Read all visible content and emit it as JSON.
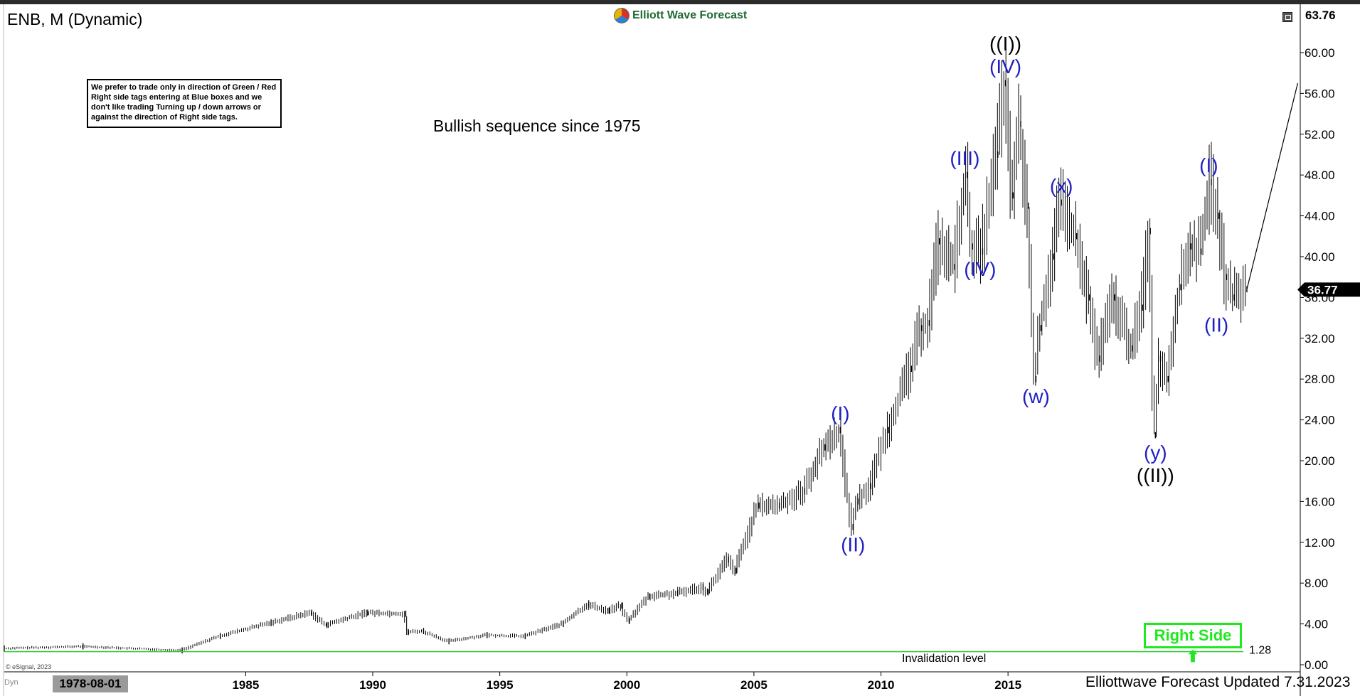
{
  "header": {
    "symbol_label": "ENB, M (Dynamic)",
    "brand": "Elliott Wave Forecast"
  },
  "note_box": {
    "text": "We prefer to trade only in direction of Green / Red Right side tags entering at Blue boxes and we don't like trading Turning up / down arrows or against the direction of Right side tags."
  },
  "subtitle": "Bullish sequence since 1975",
  "right_side_tag": "Right Side",
  "invalidation": {
    "label": "Invalidation level",
    "value_label": "1.28",
    "value": 1.28
  },
  "price_axis": {
    "top_value": "63.76",
    "current_price": "36.77",
    "ticks": [
      "60.00",
      "56.00",
      "52.00",
      "48.00",
      "44.00",
      "40.00",
      "36.00",
      "32.00",
      "28.00",
      "24.00",
      "20.00",
      "16.00",
      "12.00",
      "8.00",
      "4.00",
      "0.00"
    ]
  },
  "time_axis": {
    "cursor_date": "1978-08-01",
    "ticks": [
      "1985",
      "1990",
      "1995",
      "2000",
      "2005",
      "2010",
      "2015"
    ]
  },
  "footer": {
    "copyright": "© eSignal, 2023",
    "dyn": "Dyn",
    "updated": "Elliottwave Forecast Updated 7.31.2023"
  },
  "colors": {
    "wave_blue": "#1f1fc4",
    "wave_black": "#000000",
    "right_side_green": "#1ee81e",
    "invalidation_line": "#2ccf2c",
    "bars": "#000000"
  },
  "chart_data": {
    "type": "ohlc",
    "title": "ENB, M (Dynamic)",
    "timeframe": "Monthly",
    "ylim": [
      0,
      63.76
    ],
    "xlim": [
      1975.5,
      2026.5
    ],
    "x_tick_values": [
      1985,
      1990,
      1995,
      2000,
      2005,
      2010,
      2015
    ],
    "y_tick_values": [
      0,
      4,
      8,
      12,
      16,
      20,
      24,
      28,
      32,
      36,
      40,
      44,
      48,
      52,
      56,
      60
    ],
    "last_price": 36.77,
    "invalidation_level": 1.28,
    "price_path": [
      [
        1975.5,
        1.6
      ],
      [
        1978.6,
        1.8
      ],
      [
        1982.5,
        1.4
      ],
      [
        1984.0,
        2.8
      ],
      [
        1986.0,
        4.1
      ],
      [
        1987.6,
        5.1
      ],
      [
        1988.2,
        3.9
      ],
      [
        1989.8,
        5.1
      ],
      [
        1991.3,
        5.0
      ],
      [
        1991.4,
        3.2
      ],
      [
        1992.0,
        3.3
      ],
      [
        1993.0,
        2.3
      ],
      [
        1994.5,
        2.9
      ],
      [
        1996.0,
        2.8
      ],
      [
        1997.5,
        4.0
      ],
      [
        1998.5,
        5.9
      ],
      [
        1999.3,
        5.3
      ],
      [
        1999.8,
        5.8
      ],
      [
        2000.1,
        4.3
      ],
      [
        2000.9,
        6.7
      ],
      [
        2002.0,
        7.0
      ],
      [
        2003.0,
        7.6
      ],
      [
        2003.2,
        7.1
      ],
      [
        2004.0,
        10.3
      ],
      [
        2004.3,
        9.2
      ],
      [
        2005.2,
        15.6
      ],
      [
        2006.0,
        15.6
      ],
      [
        2007.0,
        17.0
      ],
      [
        2007.8,
        21.3
      ],
      [
        2008.4,
        23.0
      ],
      [
        2008.9,
        13.5
      ],
      [
        2009.1,
        16.0
      ],
      [
        2009.6,
        17.5
      ],
      [
        2010.3,
        23.0
      ],
      [
        2011.2,
        29.0
      ],
      [
        2011.6,
        33.0
      ],
      [
        2011.9,
        33.5
      ],
      [
        2012.3,
        41.5
      ],
      [
        2012.9,
        39.0
      ],
      [
        2013.4,
        48.0
      ],
      [
        2013.6,
        41.0
      ],
      [
        2014.0,
        40.5
      ],
      [
        2014.6,
        50.0
      ],
      [
        2014.9,
        57.0
      ],
      [
        2015.2,
        46.0
      ],
      [
        2015.5,
        53.0
      ],
      [
        2015.8,
        45.0
      ],
      [
        2016.1,
        28.0
      ],
      [
        2016.3,
        33.0
      ],
      [
        2016.8,
        40.0
      ],
      [
        2017.1,
        45.3
      ],
      [
        2017.7,
        42.0
      ],
      [
        2018.2,
        36.0
      ],
      [
        2018.6,
        30.0
      ],
      [
        2019.2,
        36.0
      ],
      [
        2019.9,
        31.0
      ],
      [
        2020.3,
        35.0
      ],
      [
        2020.6,
        42.5
      ],
      [
        2020.8,
        22.5
      ],
      [
        2021.0,
        30.0
      ],
      [
        2021.3,
        28.0
      ],
      [
        2021.8,
        37.0
      ],
      [
        2022.2,
        41.0
      ],
      [
        2022.6,
        40.5
      ],
      [
        2023.0,
        47.3
      ],
      [
        2023.3,
        44.0
      ],
      [
        2023.6,
        38.0
      ],
      [
        2023.9,
        36.0
      ],
      [
        2024.4,
        36.8
      ]
    ],
    "projection": [
      [
        2024.4,
        36.8
      ],
      [
        2026.4,
        57.0
      ]
    ],
    "wave_labels": [
      {
        "label": "((I))",
        "x": 2014.9,
        "y": 57.0,
        "pos": "above2",
        "color": "black"
      },
      {
        "label": "(IV)",
        "x": 2014.9,
        "y": 57.0,
        "pos": "above",
        "color": "blue"
      },
      {
        "label": "(III)",
        "x": 2013.3,
        "y": 48.0,
        "pos": "above",
        "color": "blue"
      },
      {
        "label": "(IV)",
        "x": 2013.9,
        "y": 40.5,
        "pos": "below",
        "color": "blue"
      },
      {
        "label": "(I)",
        "x": 2008.4,
        "y": 23.0,
        "pos": "above",
        "color": "blue"
      },
      {
        "label": "(II)",
        "x": 2008.9,
        "y": 13.5,
        "pos": "below",
        "color": "blue"
      },
      {
        "label": "(x)",
        "x": 2017.1,
        "y": 45.3,
        "pos": "above",
        "color": "blue"
      },
      {
        "label": "(w)",
        "x": 2016.1,
        "y": 28.0,
        "pos": "below",
        "color": "blue"
      },
      {
        "label": "(y)",
        "x": 2020.8,
        "y": 22.5,
        "pos": "below",
        "color": "blue"
      },
      {
        "label": "((II))",
        "x": 2020.8,
        "y": 22.5,
        "pos": "below2",
        "color": "black"
      },
      {
        "label": "(I)",
        "x": 2022.9,
        "y": 47.3,
        "pos": "above",
        "color": "blue"
      },
      {
        "label": "(II)",
        "x": 2023.2,
        "y": 35.0,
        "pos": "below",
        "color": "blue"
      }
    ]
  }
}
